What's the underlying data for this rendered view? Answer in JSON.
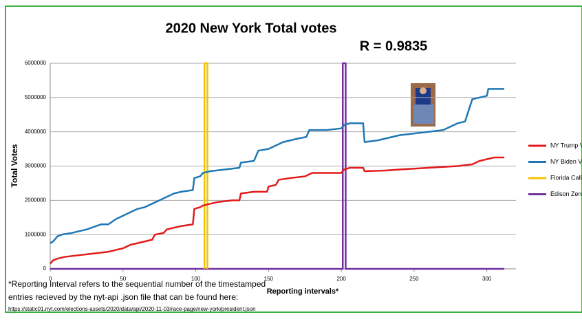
{
  "chart_data": {
    "type": "line",
    "title": "2020 New York Total votes",
    "annotation": "R = 0.9835",
    "x_label": "Reporting intervals*",
    "y_label": "Total Votes",
    "footnote": [
      "*Reporting Interval refers to the sequential number of the timestamped",
      " entries recieved by the nyt-api .json file that can be found here:",
      "https://static01.nyt.com/elections-assets/2020/data/api/2020-11-03/race-page/new-york/president.json"
    ],
    "xlim": [
      0,
      320
    ],
    "xticks": [
      0,
      50,
      100,
      150,
      200,
      250,
      300
    ],
    "ylim": [
      0,
      6000000
    ],
    "yticks": [
      0,
      1000000,
      2000000,
      3000000,
      4000000,
      5000000,
      6000000
    ],
    "grid": true,
    "legend": "right",
    "series": [
      {
        "name": "NY Trump Votes",
        "color": "#e31a1c",
        "x": [
          0,
          2,
          5,
          10,
          20,
          30,
          40,
          45,
          50,
          55,
          60,
          65,
          70,
          72,
          78,
          80,
          85,
          90,
          98,
          99,
          103,
          105,
          110,
          115,
          125,
          130,
          131,
          140,
          149,
          150,
          155,
          157,
          165,
          175,
          180,
          200,
          202,
          206,
          215,
          216,
          230,
          240,
          260,
          280,
          290,
          295,
          305,
          312
        ],
        "values": [
          150000,
          250000,
          300000,
          350000,
          400000,
          450000,
          500000,
          550000,
          600000,
          700000,
          750000,
          800000,
          850000,
          1000000,
          1050000,
          1150000,
          1200000,
          1250000,
          1300000,
          1750000,
          1800000,
          1850000,
          1900000,
          1950000,
          2000000,
          2000000,
          2200000,
          2250000,
          2250000,
          2400000,
          2450000,
          2600000,
          2650000,
          2700000,
          2800000,
          2800000,
          2900000,
          2950000,
          2950000,
          2850000,
          2870000,
          2900000,
          2950000,
          3000000,
          3050000,
          3150000,
          3250000,
          3250000
        ]
      },
      {
        "name": "NY Biden Votes",
        "color": "#1f78b4",
        "x": [
          0,
          2,
          5,
          8,
          15,
          25,
          35,
          40,
          45,
          50,
          55,
          60,
          65,
          70,
          75,
          80,
          85,
          90,
          98,
          99,
          103,
          105,
          110,
          120,
          130,
          131,
          140,
          143,
          150,
          155,
          160,
          170,
          176,
          178,
          190,
          200,
          202,
          206,
          215,
          216,
          225,
          235,
          240,
          250,
          260,
          270,
          280,
          285,
          290,
          295,
          300,
          301,
          312
        ],
        "values": [
          750000,
          800000,
          950000,
          1000000,
          1050000,
          1150000,
          1300000,
          1300000,
          1450000,
          1550000,
          1650000,
          1750000,
          1800000,
          1900000,
          2000000,
          2100000,
          2200000,
          2250000,
          2300000,
          2650000,
          2700000,
          2800000,
          2850000,
          2900000,
          2950000,
          3100000,
          3150000,
          3450000,
          3500000,
          3600000,
          3700000,
          3800000,
          3850000,
          4050000,
          4050000,
          4100000,
          4200000,
          4250000,
          4250000,
          3700000,
          3750000,
          3850000,
          3900000,
          3950000,
          4000000,
          4050000,
          4250000,
          4300000,
          4950000,
          5000000,
          5050000,
          5250000,
          5250000
        ]
      },
      {
        "name": "Florida Called",
        "color": "#f2c200",
        "x": [
          106,
          106,
          108,
          108
        ],
        "values": [
          0,
          6000000,
          6000000,
          0
        ]
      },
      {
        "name": "Edison Zero",
        "color": "#7030a0",
        "x": [
          0,
          201,
          201,
          203,
          203,
          312
        ],
        "values": [
          0,
          0,
          6000000,
          6000000,
          0,
          0
        ]
      }
    ]
  }
}
